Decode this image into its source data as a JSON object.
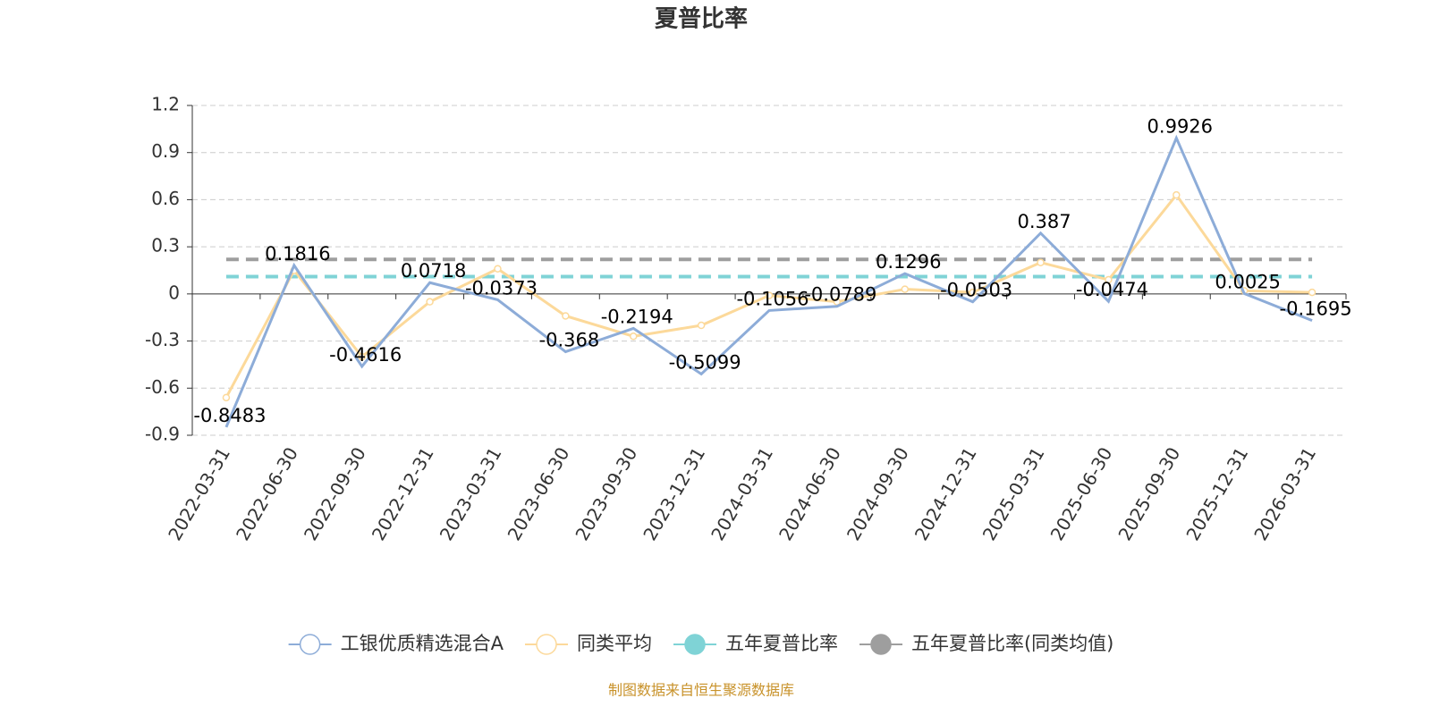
{
  "chart_data": {
    "type": "line",
    "title": "夏普比率",
    "categories": [
      "2022-03-31",
      "2022-06-30",
      "2022-09-30",
      "2022-12-31",
      "2023-03-31",
      "2023-06-30",
      "2023-09-30",
      "2023-12-31",
      "2024-03-31",
      "2024-06-30",
      "2024-09-30",
      "2024-12-31",
      "2025-03-31",
      "2025-06-30",
      "2025-09-30",
      "2025-12-31",
      "2026-03-31"
    ],
    "series": [
      {
        "name": "工银优质精选混合A",
        "color": "#8dacd8",
        "values": [
          -0.8483,
          0.1816,
          -0.4616,
          0.0718,
          -0.0373,
          -0.368,
          -0.2194,
          -0.5099,
          -0.1056,
          -0.0789,
          0.1296,
          -0.0503,
          0.387,
          -0.0474,
          0.9926,
          0.0025,
          -0.1695
        ]
      },
      {
        "name": "同类平均",
        "color": "#fcd99a",
        "values": [
          -0.66,
          0.15,
          -0.4,
          -0.05,
          0.16,
          -0.14,
          -0.27,
          -0.2,
          -0.01,
          -0.05,
          0.03,
          0.01,
          0.2,
          0.09,
          0.63,
          0.02,
          0.01
        ]
      }
    ],
    "reference_lines": [
      {
        "name": "五年夏普比率",
        "color": "#7fd3d6",
        "value": 0.11
      },
      {
        "name": "五年夏普比率(同类均值)",
        "color": "#9e9e9e",
        "value": 0.22
      }
    ],
    "ylim": [
      -0.9,
      1.2
    ],
    "yticks": [
      -0.9,
      -0.6,
      -0.3,
      0,
      0.3,
      0.6,
      0.9,
      1.2
    ],
    "grid": true,
    "source": "制图数据来自恒生聚源数据库"
  }
}
